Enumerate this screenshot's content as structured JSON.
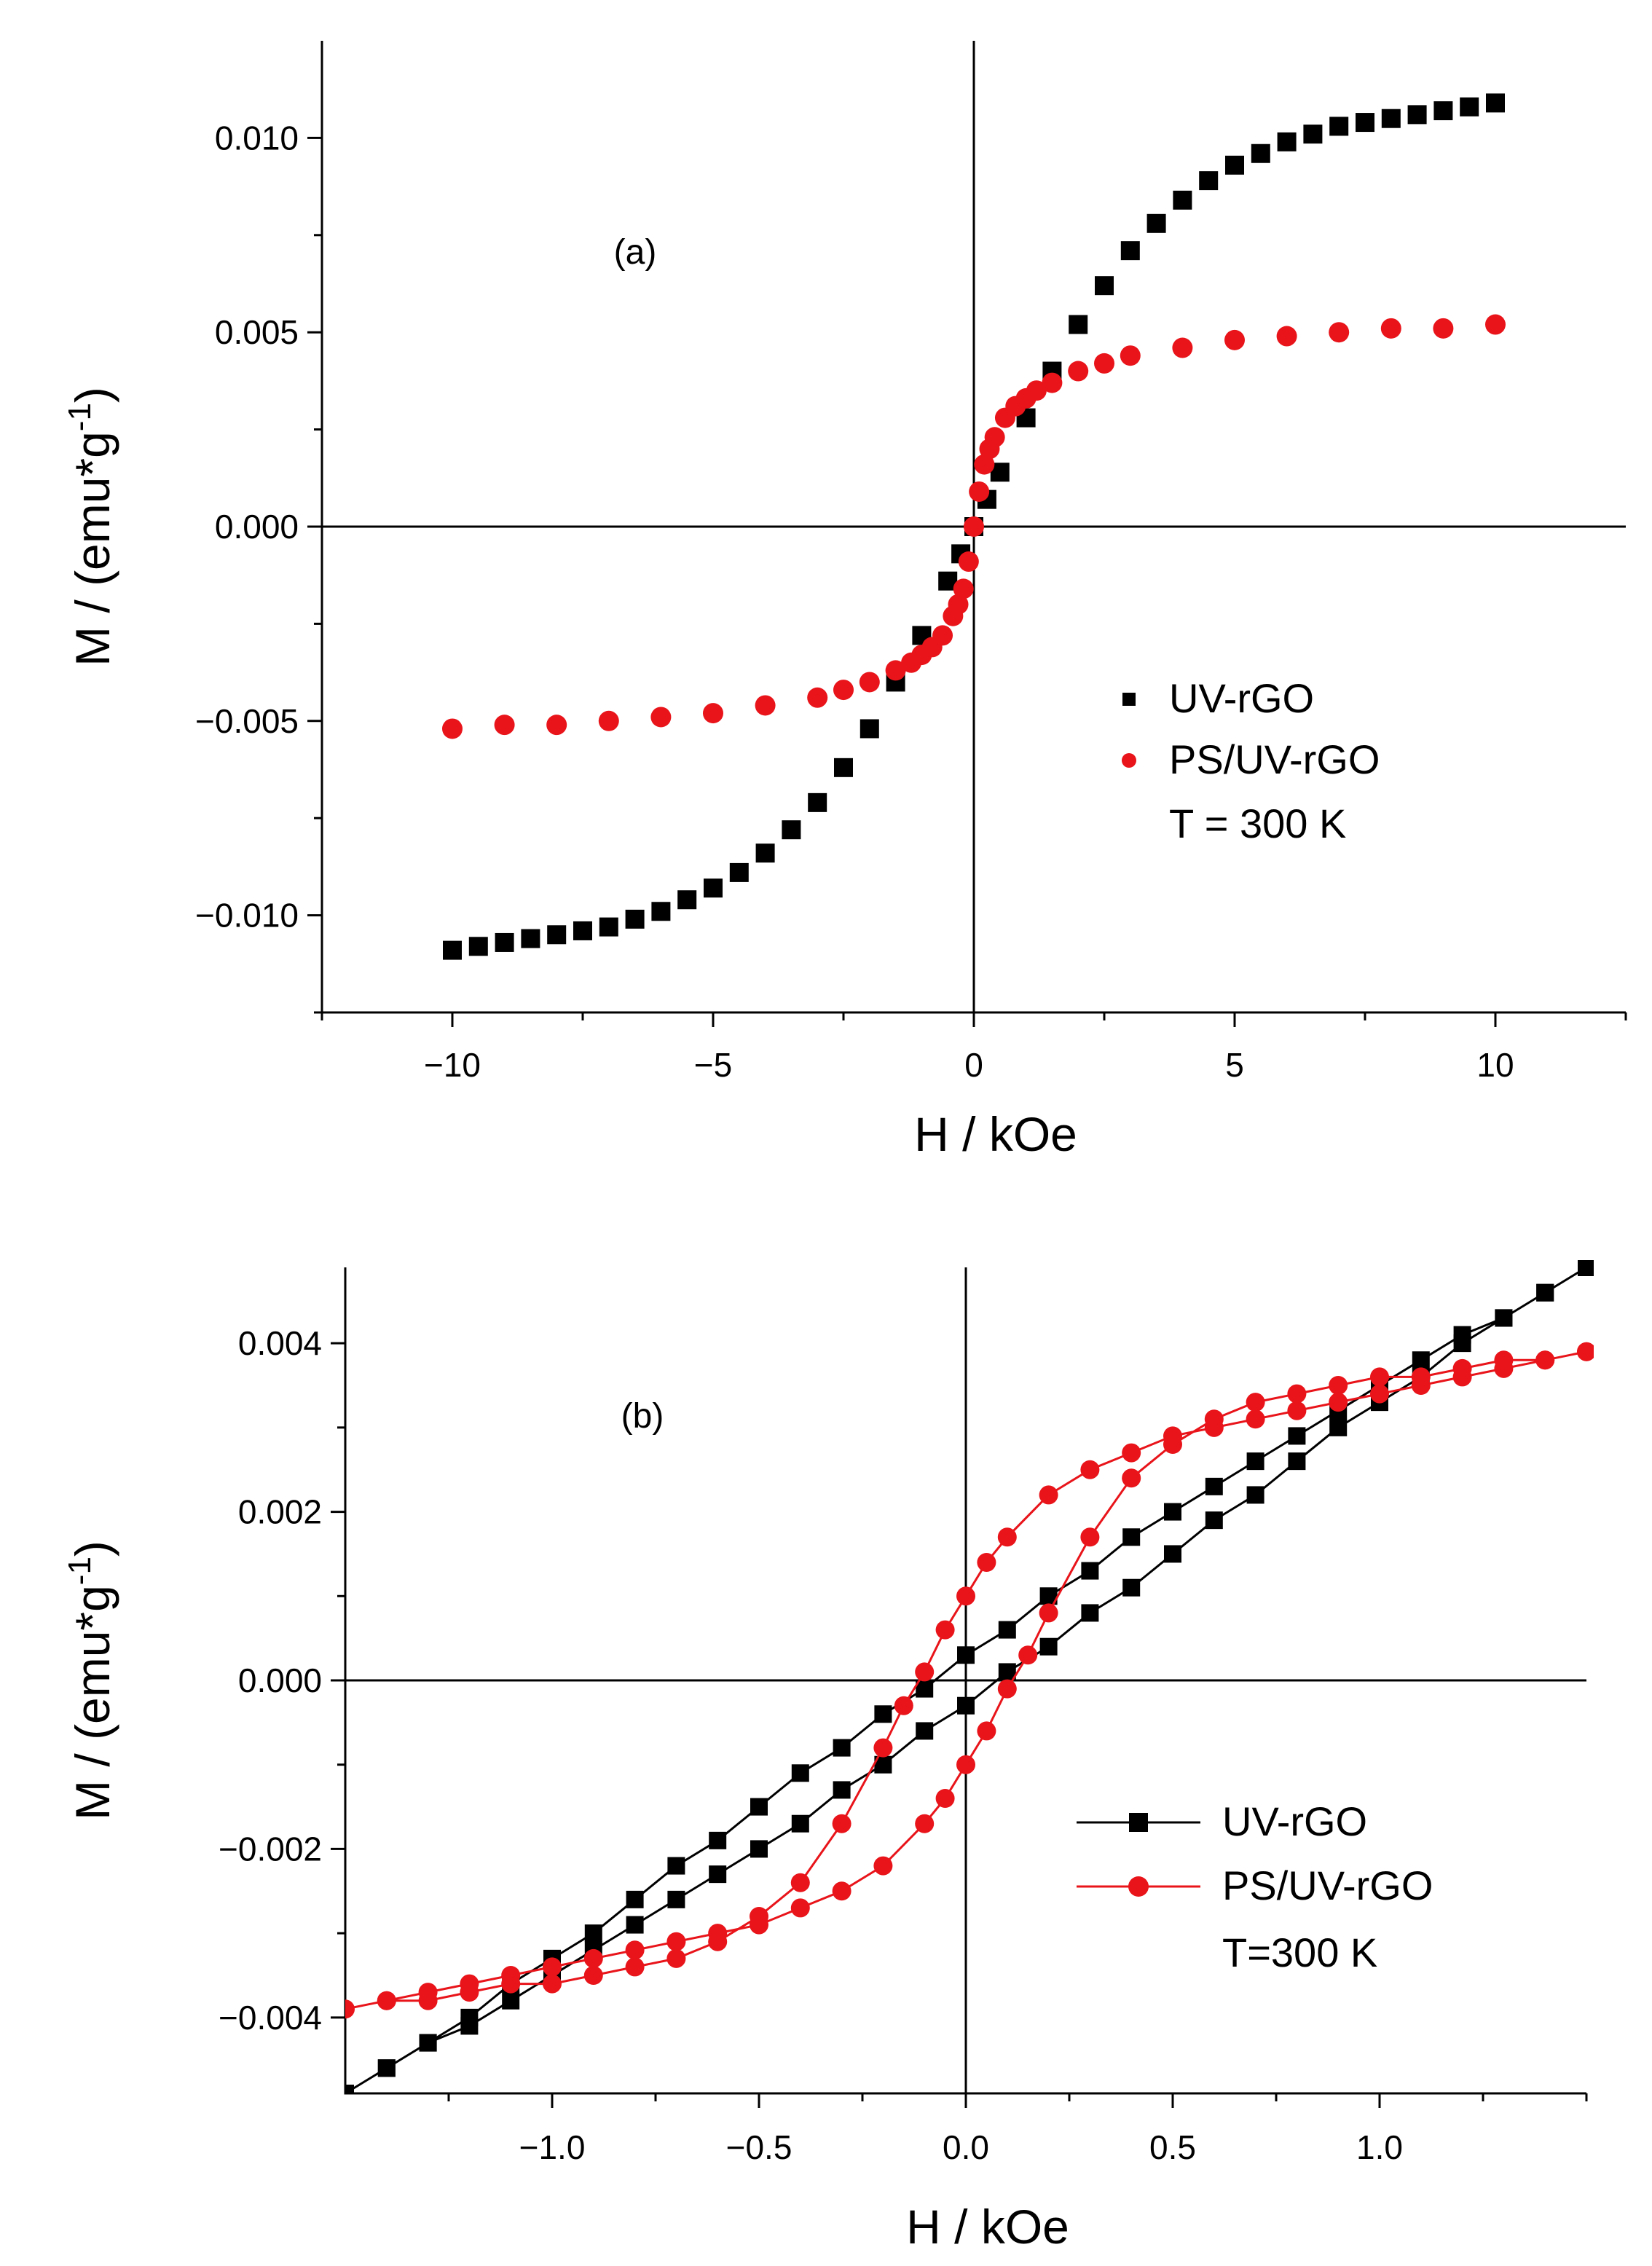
{
  "chart_data": [
    {
      "type": "scatter",
      "panel_label": "(a)",
      "xlabel": "H / kOe",
      "ylabel_main": "M / (emu*g",
      "ylabel_sup": "-1",
      "ylabel_end": ")",
      "xlim": [
        -12.5,
        12.5
      ],
      "ylim": [
        -0.0125,
        0.0125
      ],
      "xticks": [
        {
          "v": -10,
          "label": "−10"
        },
        {
          "v": -5,
          "label": "−5"
        },
        {
          "v": 0,
          "label": "0"
        },
        {
          "v": 5,
          "label": "5"
        },
        {
          "v": 10,
          "label": "10"
        }
      ],
      "yticks": [
        {
          "v": 0.01,
          "label": "0.010"
        },
        {
          "v": 0.005,
          "label": "0.005"
        },
        {
          "v": 0.0,
          "label": "0.000"
        },
        {
          "v": -0.005,
          "label": "−0.005"
        },
        {
          "v": -0.01,
          "label": "−0.010"
        }
      ],
      "legend": {
        "position": "bottom-right",
        "note": "T = 300 K"
      },
      "series": [
        {
          "name": "UV-rGO",
          "color": "#000000",
          "marker": "square",
          "x": [
            -10,
            -9.5,
            -9,
            -8.5,
            -8,
            -7.5,
            -7,
            -6.5,
            -6,
            -5.5,
            -5,
            -4.5,
            -4,
            -3.5,
            -3,
            -2.5,
            -2,
            -1.5,
            -1,
            -0.5,
            -0.25,
            0,
            0.25,
            0.5,
            1,
            1.5,
            2,
            2.5,
            3,
            3.5,
            4,
            4.5,
            5,
            5.5,
            6,
            6.5,
            7,
            7.5,
            8,
            8.5,
            9,
            9.5,
            10
          ],
          "y": [
            -0.0109,
            -0.0108,
            -0.0107,
            -0.0106,
            -0.0105,
            -0.0104,
            -0.0103,
            -0.0101,
            -0.0099,
            -0.0096,
            -0.0093,
            -0.0089,
            -0.0084,
            -0.0078,
            -0.0071,
            -0.0062,
            -0.0052,
            -0.004,
            -0.0028,
            -0.0014,
            -0.0007,
            0.0,
            0.0007,
            0.0014,
            0.0028,
            0.004,
            0.0052,
            0.0062,
            0.0071,
            0.0078,
            0.0084,
            0.0089,
            0.0093,
            0.0096,
            0.0099,
            0.0101,
            0.0103,
            0.0104,
            0.0105,
            0.0106,
            0.0107,
            0.0108,
            0.0109
          ]
        },
        {
          "name": "PS/UV-rGO",
          "color": "#e8141a",
          "marker": "circle",
          "x": [
            -10,
            -9,
            -8,
            -7,
            -6,
            -5,
            -4,
            -3,
            -2.5,
            -2,
            -1.5,
            -1.2,
            -1,
            -0.8,
            -0.6,
            -0.4,
            -0.3,
            -0.2,
            -0.1,
            0,
            0.1,
            0.2,
            0.3,
            0.4,
            0.6,
            0.8,
            1,
            1.2,
            1.5,
            2,
            2.5,
            3,
            4,
            5,
            6,
            7,
            8,
            9,
            10
          ],
          "y": [
            -0.0052,
            -0.0051,
            -0.0051,
            -0.005,
            -0.0049,
            -0.0048,
            -0.0046,
            -0.0044,
            -0.0042,
            -0.004,
            -0.0037,
            -0.0035,
            -0.0033,
            -0.0031,
            -0.0028,
            -0.0023,
            -0.002,
            -0.0016,
            -0.0009,
            0.0,
            0.0009,
            0.0016,
            0.002,
            0.0023,
            0.0028,
            0.0031,
            0.0033,
            0.0035,
            0.0037,
            0.004,
            0.0042,
            0.0044,
            0.0046,
            0.0048,
            0.0049,
            0.005,
            0.0051,
            0.0051,
            0.0052
          ]
        }
      ]
    },
    {
      "type": "line",
      "panel_label": "(b)",
      "xlabel": "H / kOe",
      "ylabel_main": "M / (emu*g",
      "ylabel_sup": "-1",
      "ylabel_end": ")",
      "xlim": [
        -1.5,
        1.5
      ],
      "ylim": [
        -0.0049,
        0.0049
      ],
      "xticks": [
        {
          "v": -1.0,
          "label": "−1.0"
        },
        {
          "v": -0.5,
          "label": "−0.5"
        },
        {
          "v": 0.0,
          "label": "0.0"
        },
        {
          "v": 0.5,
          "label": "0.5"
        },
        {
          "v": 1.0,
          "label": "1.0"
        }
      ],
      "yticks": [
        {
          "v": 0.004,
          "label": "0.004"
        },
        {
          "v": 0.002,
          "label": "0.002"
        },
        {
          "v": 0.0,
          "label": "0.000"
        },
        {
          "v": -0.002,
          "label": "−0.002"
        },
        {
          "v": -0.004,
          "label": "−0.004"
        }
      ],
      "legend": {
        "position": "bottom-right",
        "note": "T=300 K"
      },
      "series": [
        {
          "name": "UV-rGO",
          "color": "#000000",
          "marker": "square",
          "x": [
            1.5,
            1.4,
            1.3,
            1.2,
            1.1,
            1.0,
            0.9,
            0.8,
            0.7,
            0.6,
            0.5,
            0.4,
            0.3,
            0.2,
            0.1,
            0.0,
            -0.1,
            -0.2,
            -0.3,
            -0.4,
            -0.5,
            -0.6,
            -0.7,
            -0.8,
            -0.9,
            -1.0,
            -1.1,
            -1.2,
            -1.3,
            -1.4,
            -1.5,
            -1.4,
            -1.3,
            -1.2,
            -1.1,
            -1.0,
            -0.9,
            -0.8,
            -0.7,
            -0.6,
            -0.5,
            -0.4,
            -0.3,
            -0.2,
            -0.1,
            0.0,
            0.1,
            0.2,
            0.3,
            0.4,
            0.5,
            0.6,
            0.7,
            0.8,
            0.9,
            1.0,
            1.1,
            1.2,
            1.3,
            1.4,
            1.5
          ],
          "y": [
            0.0049,
            0.0046,
            0.0043,
            0.0041,
            0.0038,
            0.0035,
            0.0032,
            0.0029,
            0.0026,
            0.0023,
            0.002,
            0.0017,
            0.0013,
            0.001,
            0.0006,
            0.0003,
            -0.0001,
            -0.0004,
            -0.0008,
            -0.0011,
            -0.0015,
            -0.0019,
            -0.0022,
            -0.0026,
            -0.003,
            -0.0033,
            -0.0036,
            -0.004,
            -0.0043,
            -0.0046,
            -0.0049,
            -0.0046,
            -0.0043,
            -0.0041,
            -0.0038,
            -0.0035,
            -0.0032,
            -0.0029,
            -0.0026,
            -0.0023,
            -0.002,
            -0.0017,
            -0.0013,
            -0.001,
            -0.0006,
            -0.0003,
            0.0001,
            0.0004,
            0.0008,
            0.0011,
            0.0015,
            0.0019,
            0.0022,
            0.0026,
            0.003,
            0.0033,
            0.0036,
            0.004,
            0.0043,
            0.0046,
            0.0049
          ]
        },
        {
          "name": "PS/UV-rGO",
          "color": "#e8141a",
          "marker": "circle",
          "x": [
            1.5,
            1.4,
            1.3,
            1.2,
            1.1,
            1.0,
            0.9,
            0.8,
            0.7,
            0.6,
            0.5,
            0.4,
            0.3,
            0.2,
            0.1,
            0.05,
            0.0,
            -0.05,
            -0.1,
            -0.15,
            -0.2,
            -0.3,
            -0.4,
            -0.5,
            -0.6,
            -0.7,
            -0.8,
            -0.9,
            -1.0,
            -1.1,
            -1.2,
            -1.3,
            -1.4,
            -1.5,
            -1.4,
            -1.3,
            -1.2,
            -1.1,
            -1.0,
            -0.9,
            -0.8,
            -0.7,
            -0.6,
            -0.5,
            -0.4,
            -0.3,
            -0.2,
            -0.1,
            -0.05,
            0.0,
            0.05,
            0.1,
            0.15,
            0.2,
            0.3,
            0.4,
            0.5,
            0.6,
            0.7,
            0.8,
            0.9,
            1.0,
            1.1,
            1.2,
            1.3,
            1.4,
            1.5
          ],
          "y": [
            0.0039,
            0.0038,
            0.0037,
            0.0036,
            0.0035,
            0.0034,
            0.0033,
            0.0032,
            0.0031,
            0.003,
            0.0029,
            0.0027,
            0.0025,
            0.0022,
            0.0017,
            0.0014,
            0.001,
            0.0006,
            0.0001,
            -0.0003,
            -0.0008,
            -0.0017,
            -0.0024,
            -0.0028,
            -0.0031,
            -0.0033,
            -0.0034,
            -0.0035,
            -0.0036,
            -0.0036,
            -0.0037,
            -0.0038,
            -0.0038,
            -0.0039,
            -0.0038,
            -0.0037,
            -0.0036,
            -0.0035,
            -0.0034,
            -0.0033,
            -0.0032,
            -0.0031,
            -0.003,
            -0.0029,
            -0.0027,
            -0.0025,
            -0.0022,
            -0.0017,
            -0.0014,
            -0.001,
            -0.0006,
            -0.0001,
            0.0003,
            0.0008,
            0.0017,
            0.0024,
            0.0028,
            0.0031,
            0.0033,
            0.0034,
            0.0035,
            0.0036,
            0.0036,
            0.0037,
            0.0038,
            0.0038,
            0.0039
          ]
        }
      ]
    }
  ]
}
